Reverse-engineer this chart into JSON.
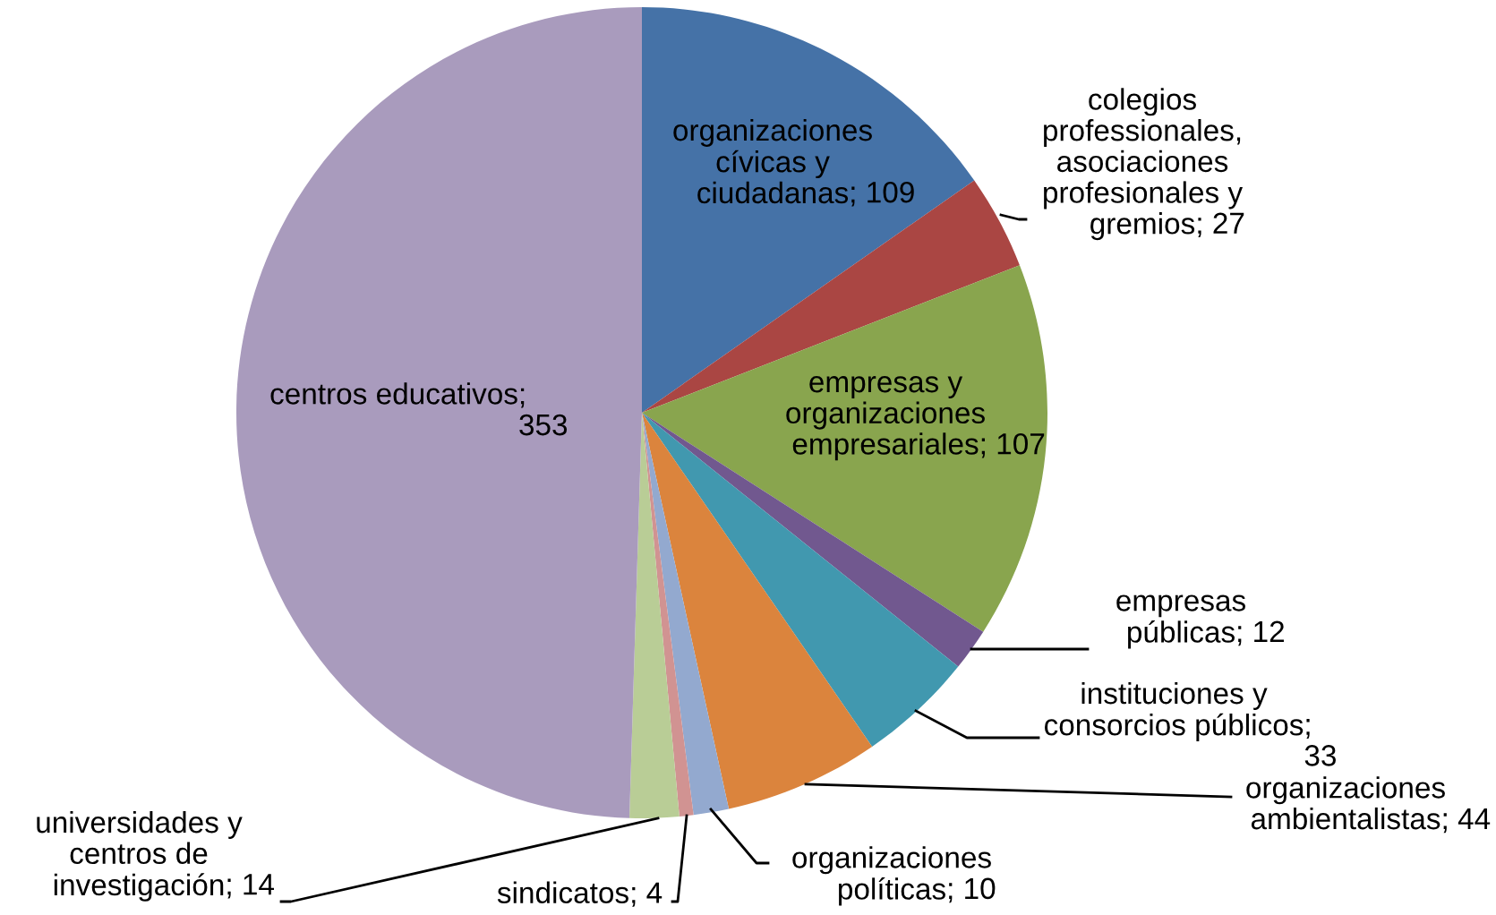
{
  "chart_data": {
    "type": "pie",
    "categories": [
      "organizaciones cívicas y ciudadanas",
      "colegios professionales, asociaciones profesionales y gremios",
      "empresas y organizaciones empresariales",
      "empresas públicas",
      "instituciones y consorcios públicos",
      "organizaciones ambientalistas",
      "organizaciones políticas",
      "sindicatos",
      "universidades y centros de investigación",
      "centros educativos"
    ],
    "values": [
      109,
      27,
      107,
      12,
      33,
      44,
      10,
      4,
      14,
      353
    ],
    "colors": [
      "#4572a7",
      "#aa4643",
      "#89a54e",
      "#71588f",
      "#4198af",
      "#db843d",
      "#93a9cf",
      "#d19392",
      "#b9cd96",
      "#a99bbd"
    ],
    "value_labels": [
      "; 109",
      "; 27",
      "; 107",
      "; 12",
      ";\n33",
      "; 44",
      "; 10",
      "; 4",
      "; 14",
      ";\n353"
    ]
  }
}
